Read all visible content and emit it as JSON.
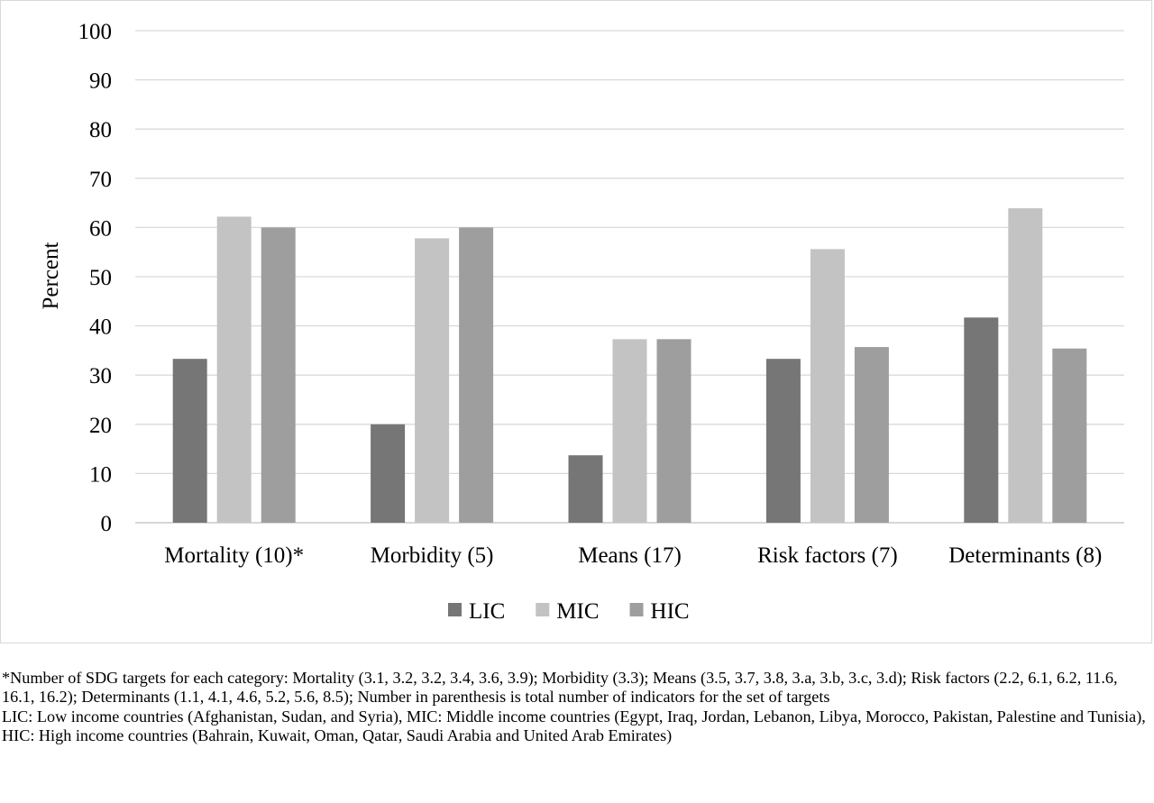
{
  "chart_data": {
    "type": "bar",
    "title": "",
    "xlabel": "",
    "ylabel": "Percent",
    "ylim": [
      0,
      100
    ],
    "yticks": [
      0,
      10,
      20,
      30,
      40,
      50,
      60,
      70,
      80,
      90,
      100
    ],
    "grid": true,
    "legend_position": "bottom",
    "categories": [
      "Mortality (10)*",
      "Morbidity (5)",
      "Means (17)",
      "Risk factors (7)",
      "Determinants (8)"
    ],
    "series": [
      {
        "name": "LIC",
        "color": "#767676",
        "values": [
          33.3,
          20.0,
          13.7,
          33.3,
          41.7
        ]
      },
      {
        "name": "MIC",
        "color": "#c3c3c3",
        "values": [
          62.2,
          57.8,
          37.3,
          55.6,
          63.9
        ]
      },
      {
        "name": "HIC",
        "color": "#9e9e9e",
        "values": [
          60.0,
          60.0,
          37.3,
          35.7,
          35.4
        ]
      }
    ]
  },
  "footnotes": [
    "*Number of SDG targets for each category: Mortality (3.1, 3.2, 3.2, 3.4, 3.6, 3.9); Morbidity (3.3); Means (3.5, 3.7, 3.8, 3.a, 3.b, 3.c, 3.d); Risk factors (2.2, 6.1, 6.2, 11.6, 16.1, 16.2); Determinants (1.1, 4.1, 4.6, 5.2, 5.6, 8.5); Number in parenthesis is total number of indicators for the set of targets",
    "LIC: Low income countries (Afghanistan, Sudan, and Syria), MIC: Middle income countries (Egypt, Iraq, Jordan, Lebanon, Libya, Morocco, Pakistan, Palestine and Tunisia), HIC: High income countries (Bahrain, Kuwait, Oman, Qatar, Saudi Arabia and United Arab Emirates)"
  ]
}
